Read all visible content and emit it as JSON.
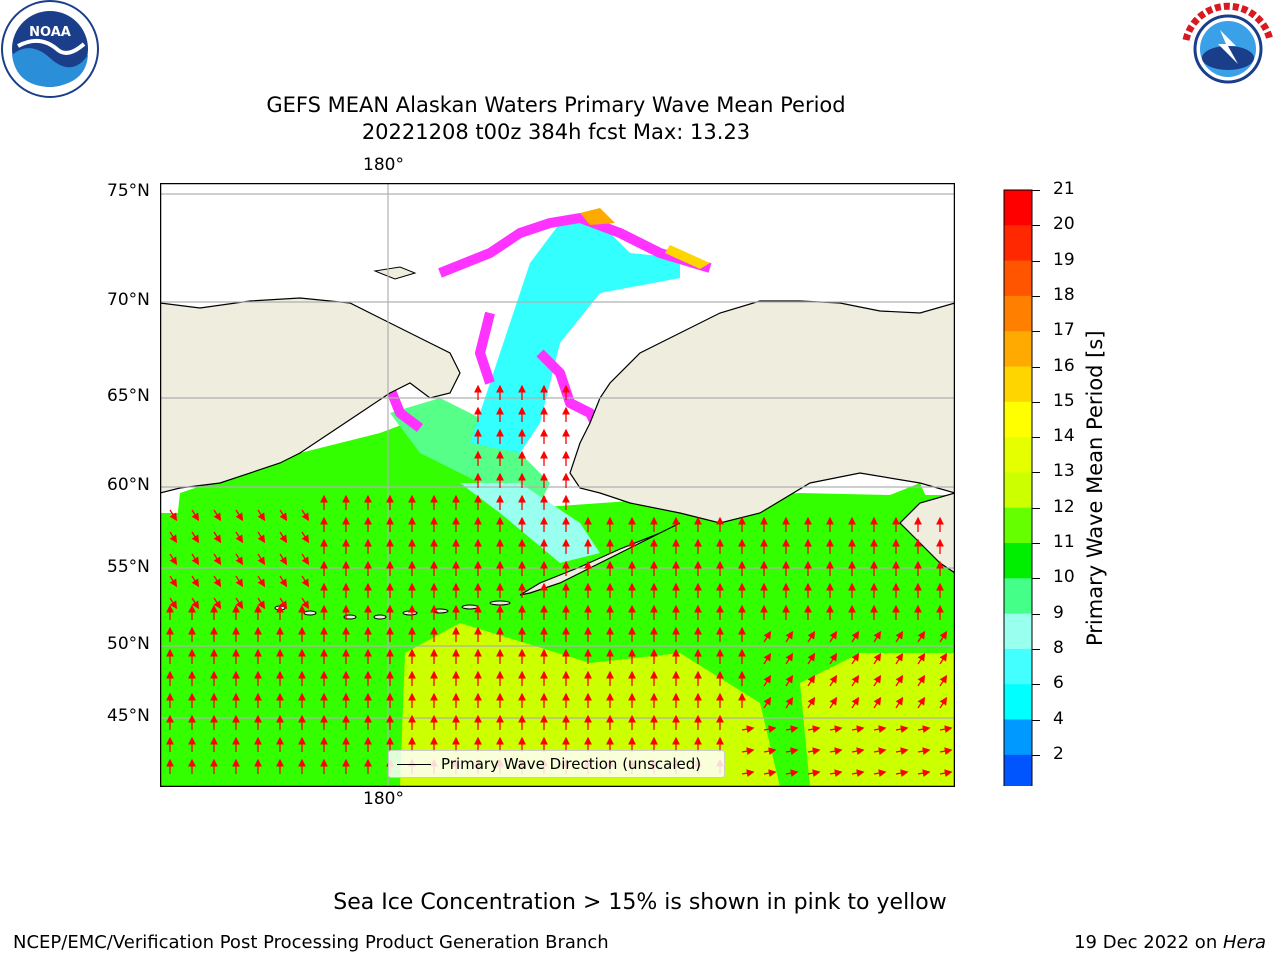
{
  "header": {
    "title_line1": "GEFS MEAN Alaskan Waters Primary Wave Mean Period",
    "title_line2": "20221208 t00z 384h fcst   Max: 13.23"
  },
  "logos": {
    "left": {
      "name": "NOAA",
      "ring_text": "NATIONAL OCEANIC AND ATMOSPHERIC ADMINISTRATION · U.S. DEPARTMENT OF COMMERCE"
    },
    "right": {
      "name": "NATIONAL WEATHER SERVICE"
    }
  },
  "map": {
    "lon_label_top": "180°",
    "lon_label_bottom": "180°",
    "lat_labels": [
      "75°N",
      "70°N",
      "65°N",
      "60°N",
      "55°N",
      "50°N",
      "45°N"
    ],
    "legend_label": "Primary Wave Direction (unscaled)",
    "colors": {
      "land": "#efedde",
      "ocean_main": "#33ff00",
      "ocean_south": "#ccff00",
      "arrow": "#ff0000",
      "ice": "#ff33ff"
    }
  },
  "colorbar": {
    "label": "Primary Wave Mean Period [s]",
    "ticks": [
      "21",
      "20",
      "19",
      "18",
      "17",
      "16",
      "15",
      "14",
      "13",
      "12",
      "11",
      "10",
      "9",
      "8",
      "6",
      "4",
      "2"
    ],
    "colors": [
      "#ff0000",
      "#ff2800",
      "#ff5500",
      "#ff8000",
      "#ffaa00",
      "#ffd500",
      "#ffff00",
      "#e6ff00",
      "#ccff00",
      "#66ff00",
      "#00ee00",
      "#44ff88",
      "#99ffee",
      "#44ffff",
      "#00ffff",
      "#0099ff",
      "#0055ff"
    ],
    "extend_color": "#0000ff"
  },
  "notes": {
    "ice_note": "Sea Ice Concentration > 15% is shown in pink to yellow",
    "footer_left": "NCEP/EMC/Verification Post Processing Product Generation Branch",
    "footer_right_date": "19 Dec 2022 on ",
    "footer_right_host": "Hera"
  }
}
